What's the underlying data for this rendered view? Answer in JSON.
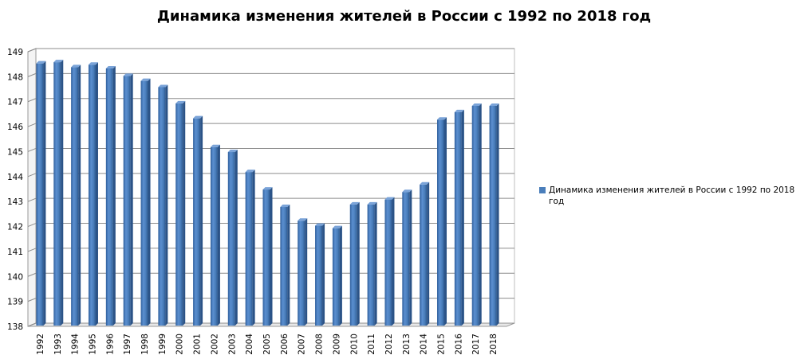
{
  "chart_data": {
    "type": "bar",
    "title": "Динамика изменения жителей в России с 1992 по 2018 год",
    "xlabel": "",
    "ylabel": "",
    "ylim": [
      138,
      149
    ],
    "yticks": [
      138,
      139,
      140,
      141,
      142,
      143,
      144,
      145,
      146,
      147,
      148,
      149
    ],
    "grid": true,
    "legend_position": "right",
    "categories": [
      "1992",
      "1993",
      "1994",
      "1995",
      "1996",
      "1997",
      "1998",
      "1999",
      "2000",
      "2001",
      "2002",
      "2003",
      "2004",
      "2005",
      "2006",
      "2007",
      "2008",
      "2009",
      "2010",
      "2011",
      "2012",
      "2013",
      "2014",
      "2015",
      "2016",
      "2017",
      "2018"
    ],
    "series": [
      {
        "name": "Динамика изменения жителей в России с 1992 по 2018 год",
        "color": "#4a7ebb",
        "values": [
          148.5,
          148.55,
          148.35,
          148.45,
          148.3,
          148.0,
          147.8,
          147.55,
          146.9,
          146.3,
          145.15,
          144.95,
          144.15,
          143.45,
          142.75,
          142.2,
          142.0,
          141.9,
          142.85,
          142.85,
          143.05,
          143.35,
          143.65,
          146.25,
          146.55,
          146.8,
          146.8
        ]
      }
    ]
  }
}
